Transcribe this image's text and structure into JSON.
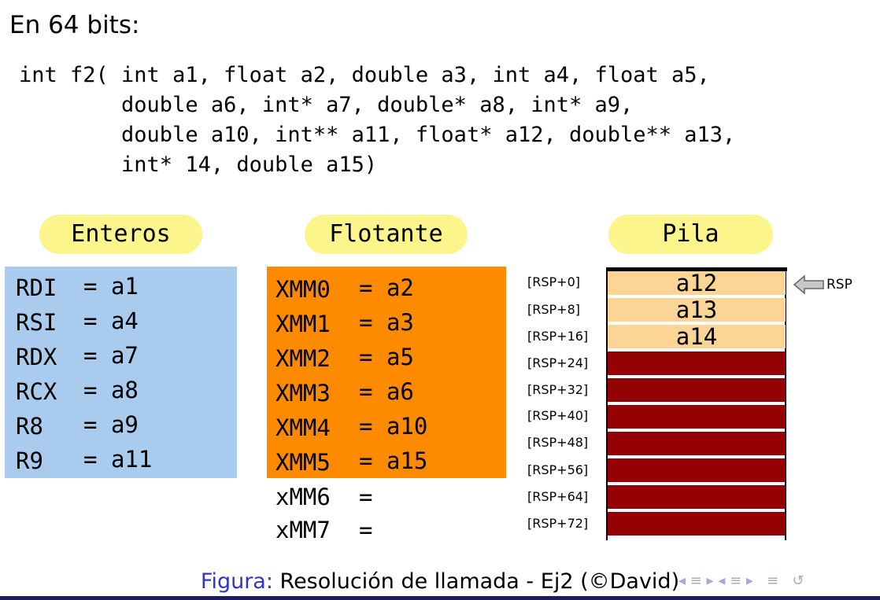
{
  "heading": "En 64 bits:",
  "signature": [
    "int f2( int a1, float a2, double a3, int a4, float a5,",
    "        double a6, int* a7, double* a8, int* a9,",
    "        double a10, int** a11, float* a12, double** a13,",
    "        int* 14, double a15)"
  ],
  "columns": {
    "integers": "Enteros",
    "floats": "Flotante",
    "stack": "Pila"
  },
  "integer_registers": [
    {
      "reg": "RDI",
      "eq": "=",
      "arg": "a1"
    },
    {
      "reg": "RSI",
      "eq": "=",
      "arg": "a4"
    },
    {
      "reg": "RDX",
      "eq": "=",
      "arg": "a7"
    },
    {
      "reg": "RCX",
      "eq": "=",
      "arg": "a8"
    },
    {
      "reg": "R8",
      "eq": "=",
      "arg": "a9"
    },
    {
      "reg": "R9",
      "eq": "=",
      "arg": "a11"
    }
  ],
  "float_registers": [
    {
      "reg": "XMM0",
      "eq": "=",
      "arg": "a2"
    },
    {
      "reg": "XMM1",
      "eq": "=",
      "arg": "a3"
    },
    {
      "reg": "XMM2",
      "eq": "=",
      "arg": "a5"
    },
    {
      "reg": "XMM3",
      "eq": "=",
      "arg": "a6"
    },
    {
      "reg": "XMM4",
      "eq": "=",
      "arg": "a10"
    },
    {
      "reg": "XMM5",
      "eq": "=",
      "arg": "a15"
    },
    {
      "reg": "xMM6",
      "eq": "=",
      "arg": ""
    },
    {
      "reg": "xMM7",
      "eq": "=",
      "arg": ""
    }
  ],
  "stack": [
    {
      "offset": "[RSP+0]",
      "value": "a12"
    },
    {
      "offset": "[RSP+8]",
      "value": "a13"
    },
    {
      "offset": "[RSP+16]",
      "value": "a14"
    },
    {
      "offset": "[RSP+24]",
      "value": ""
    },
    {
      "offset": "[RSP+32]",
      "value": ""
    },
    {
      "offset": "[RSP+40]",
      "value": ""
    },
    {
      "offset": "[RSP+48]",
      "value": ""
    },
    {
      "offset": "[RSP+56]",
      "value": ""
    },
    {
      "offset": "[RSP+64]",
      "value": ""
    },
    {
      "offset": "[RSP+72]",
      "value": ""
    }
  ],
  "rsp_pointer_label": "RSP",
  "caption": {
    "prefix": "Figura:",
    "text": " Resolución de llamada - Ej2 (©David)"
  },
  "nav_glyphs": "◂ ≡ ▸ ◂ ≡ ▸   ≡   ↺",
  "colors": {
    "integer_box": "#a9cbee",
    "float_box": "#fe8a00",
    "pill": "#fbf58c",
    "stack_filled": "#fbd595",
    "stack_empty": "#950203",
    "caption_prefix": "#2e35c8"
  }
}
